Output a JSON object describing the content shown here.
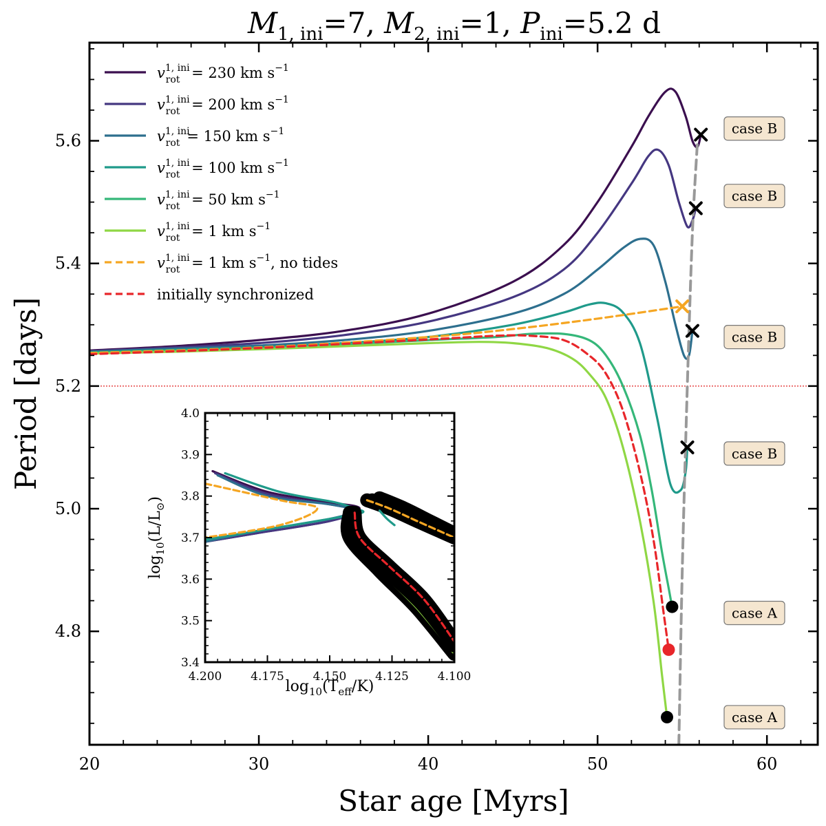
{
  "chart_data": {
    "type": "line",
    "title": "M1,ini=7, M2,ini=1, Pini=5.2 d",
    "xlabel": "Star age [Myrs]",
    "ylabel": "Period [days]",
    "xlim": [
      20,
      63
    ],
    "ylim": [
      4.615,
      5.76
    ],
    "xticks": [
      20,
      30,
      40,
      50,
      60
    ],
    "xtick_labels": [
      "20",
      "30",
      "40",
      "50",
      "60"
    ],
    "yticks": [
      4.8,
      5.0,
      5.2,
      5.4,
      5.6
    ],
    "ytick_labels": [
      "4.8",
      "5.0",
      "5.2",
      "5.4",
      "5.6"
    ],
    "reference_line": {
      "y": 5.2,
      "color": "#e02020",
      "style": "dotted"
    },
    "legend_position": "upper-left",
    "series": [
      {
        "name": "v_rot^{1,ini} = 230 km s^-1",
        "label_main": "v",
        "label_sub": "rot",
        "label_sup": "1, ini",
        "label_rest": " = 230 km s",
        "label_exp": "−1",
        "color": "#3b0f4f",
        "style": "solid",
        "x": [
          20,
          25,
          30,
          35,
          40,
          45,
          48,
          50,
          52,
          53,
          54,
          54.6,
          55.2,
          55.6,
          55.9,
          56.1
        ],
        "y": [
          5.258,
          5.265,
          5.275,
          5.29,
          5.318,
          5.37,
          5.43,
          5.5,
          5.59,
          5.64,
          5.68,
          5.68,
          5.64,
          5.6,
          5.59,
          5.61
        ]
      },
      {
        "name": "v_rot^{1,ini} = 200 km s^-1",
        "label_main": "v",
        "label_sub": "rot",
        "label_sup": "1, ini",
        "label_rest": " = 200 km s",
        "label_exp": "−1",
        "color": "#453781",
        "style": "solid",
        "x": [
          20,
          25,
          30,
          35,
          40,
          45,
          48,
          50,
          52,
          53,
          53.6,
          54.2,
          54.8,
          55.3,
          55.6,
          55.8
        ],
        "y": [
          5.257,
          5.263,
          5.27,
          5.283,
          5.305,
          5.345,
          5.39,
          5.45,
          5.53,
          5.575,
          5.585,
          5.56,
          5.5,
          5.46,
          5.47,
          5.49
        ]
      },
      {
        "name": "v_rot^{1,ini} = 150 km s^-1",
        "label_main": "v",
        "label_sub": "rot",
        "label_sup": "1, ini",
        "label_rest": "= 150 km s",
        "label_exp": "−1",
        "color": "#2d6f8e",
        "style": "solid",
        "x": [
          20,
          25,
          30,
          35,
          40,
          45,
          48,
          50,
          51.5,
          52.5,
          53.3,
          54,
          54.6,
          55.1,
          55.4,
          55.6
        ],
        "y": [
          5.256,
          5.261,
          5.266,
          5.275,
          5.29,
          5.318,
          5.35,
          5.39,
          5.425,
          5.44,
          5.43,
          5.37,
          5.3,
          5.25,
          5.25,
          5.29
        ]
      },
      {
        "name": "v_rot^{1,ini} = 100 km s^-1",
        "label_main": "v",
        "label_sub": "rot",
        "label_sup": "1, ini",
        "label_rest": " = 100 km s",
        "label_exp": "−1",
        "color": "#1f9a8a",
        "style": "solid",
        "x": [
          20,
          25,
          30,
          35,
          40,
          45,
          48,
          49.5,
          50.5,
          51.5,
          52.5,
          53.5,
          54.3,
          54.9,
          55.2,
          55.3
        ],
        "y": [
          5.255,
          5.259,
          5.263,
          5.27,
          5.28,
          5.3,
          5.32,
          5.333,
          5.335,
          5.32,
          5.27,
          5.15,
          5.04,
          5.03,
          5.06,
          5.1
        ]
      },
      {
        "name": "v_rot^{1,ini} = 50 km s^-1",
        "label_main": "v",
        "label_sub": "rot",
        "label_sup": "1, ini",
        "label_rest": " = 50 km s",
        "label_exp": "−1",
        "color": "#35b779",
        "style": "solid",
        "x": [
          20,
          25,
          30,
          35,
          40,
          44,
          46,
          48,
          49.5,
          50.5,
          51.5,
          52.5,
          53.2,
          53.8,
          54.2,
          54.4
        ],
        "y": [
          5.254,
          5.258,
          5.262,
          5.268,
          5.275,
          5.28,
          5.285,
          5.285,
          5.275,
          5.25,
          5.2,
          5.12,
          5.03,
          4.93,
          4.87,
          4.84
        ]
      },
      {
        "name": "v_rot^{1,ini} = 1 km s^-1",
        "label_main": "v",
        "label_sub": "rot",
        "label_sup": "1, ini",
        "label_rest": " = 1 km s",
        "label_exp": "−1",
        "color": "#8fd744",
        "style": "solid",
        "x": [
          20,
          25,
          30,
          35,
          40,
          43,
          45,
          47,
          48.5,
          49.5,
          50.5,
          51.5,
          52.5,
          53.3,
          53.8,
          54.1
        ],
        "y": [
          5.253,
          5.256,
          5.26,
          5.265,
          5.27,
          5.272,
          5.27,
          5.262,
          5.245,
          5.22,
          5.18,
          5.1,
          4.98,
          4.85,
          4.73,
          4.66
        ]
      },
      {
        "name": "v_rot^{1,ini} = 1 km s^-1, no tides",
        "label_main": "v",
        "label_sub": "rot",
        "label_sup": "1, ini",
        "label_rest": " = 1 km s",
        "label_exp": "−1",
        "label_tail": ", no tides",
        "color": "#f5a623",
        "style": "dashed",
        "x": [
          20,
          30,
          40,
          45,
          50,
          55
        ],
        "y": [
          5.254,
          5.263,
          5.28,
          5.293,
          5.31,
          5.33
        ]
      },
      {
        "name": "initially synchronized",
        "label_main": "initially synchronized",
        "color": "#e8262a",
        "style": "dashed",
        "x": [
          20,
          30,
          40,
          44,
          46,
          48,
          49.5,
          50.5,
          51.5,
          52.5,
          53.3,
          53.9,
          54.2
        ],
        "y": [
          5.252,
          5.262,
          5.276,
          5.282,
          5.282,
          5.275,
          5.25,
          5.22,
          5.16,
          5.06,
          4.95,
          4.83,
          4.77
        ]
      },
      {
        "name": "boundary",
        "color": "#999999",
        "style": "dashed",
        "x": [
          54.8,
          55.0,
          55.3,
          55.6,
          55.9
        ],
        "y": [
          4.615,
          4.9,
          5.2,
          5.45,
          5.6
        ]
      }
    ],
    "markers": [
      {
        "type": "x",
        "x": 56.1,
        "y": 5.61,
        "color": "#000000"
      },
      {
        "type": "x",
        "x": 55.8,
        "y": 5.49,
        "color": "#000000"
      },
      {
        "type": "x",
        "x": 55.0,
        "y": 5.33,
        "color": "#f5a623"
      },
      {
        "type": "x",
        "x": 55.6,
        "y": 5.29,
        "color": "#000000"
      },
      {
        "type": "x",
        "x": 55.3,
        "y": 5.1,
        "color": "#000000"
      },
      {
        "type": "circle",
        "x": 54.4,
        "y": 4.84,
        "color": "#000000"
      },
      {
        "type": "circle",
        "x": 54.2,
        "y": 4.77,
        "color": "#e8262a"
      },
      {
        "type": "circle",
        "x": 54.1,
        "y": 4.66,
        "color": "#000000"
      }
    ],
    "case_labels": [
      {
        "text": "case B",
        "y": 5.62
      },
      {
        "text": "case B",
        "y": 5.51
      },
      {
        "text": "case B",
        "y": 5.28
      },
      {
        "text": "case B",
        "y": 5.09
      },
      {
        "text": "case A",
        "y": 4.83
      },
      {
        "text": "case A",
        "y": 4.66
      }
    ],
    "inset": {
      "xlabel": "log10(Teff/K)",
      "ylabel": "log10(L/L⊙)",
      "xlim": [
        4.2,
        4.1
      ],
      "ylim": [
        3.4,
        4.0
      ],
      "xticks": [
        4.2,
        4.175,
        4.15,
        4.125,
        4.1
      ],
      "xtick_labels": [
        "4.200",
        "4.175",
        "4.150",
        "4.125",
        "4.100"
      ],
      "yticks": [
        3.4,
        3.5,
        3.6,
        3.7,
        3.8,
        3.9,
        4.0
      ],
      "ytick_labels": [
        "3.4",
        "3.5",
        "3.6",
        "3.7",
        "3.8",
        "3.9",
        "4.0"
      ],
      "tracks": [
        {
          "name": "230",
          "color": "#3b0f4f",
          "style": "solid",
          "x": [
            4.197,
            4.175,
            4.15,
            4.138,
            4.15,
            4.18,
            4.2
          ],
          "y": [
            3.86,
            3.81,
            3.785,
            3.77,
            3.74,
            3.71,
            3.69
          ]
        },
        {
          "name": "200",
          "color": "#453781",
          "style": "solid",
          "x": [
            4.196,
            4.175,
            4.15,
            4.139,
            4.15,
            4.18,
            4.2
          ],
          "y": [
            3.855,
            3.805,
            3.78,
            3.765,
            3.74,
            3.71,
            3.69
          ]
        },
        {
          "name": "150",
          "color": "#2d6f8e",
          "style": "solid",
          "x": [
            4.195,
            4.175,
            4.15,
            4.14,
            4.15,
            4.18,
            4.2
          ],
          "y": [
            3.85,
            3.8,
            3.78,
            3.765,
            3.745,
            3.715,
            3.69
          ]
        },
        {
          "name": "100",
          "color": "#1f9a8a",
          "style": "solid",
          "x": [
            4.192,
            4.17,
            4.148,
            4.14,
            4.137,
            4.15,
            4.18,
            4.2
          ],
          "y": [
            3.855,
            3.81,
            3.785,
            3.77,
            3.76,
            3.745,
            3.715,
            3.695
          ]
        },
        {
          "name": "notides",
          "color": "#f5a623",
          "style": "dashed",
          "x": [
            4.2,
            4.17,
            4.155,
            4.17,
            4.2
          ],
          "y": [
            3.83,
            3.79,
            3.77,
            3.73,
            3.7
          ]
        },
        {
          "name": "post-230",
          "color": "#3b0f4f",
          "style": "solid",
          "x": [
            4.13,
            4.12,
            4.11,
            4.1
          ],
          "y": [
            3.795,
            3.77,
            3.74,
            3.71
          ]
        },
        {
          "name": "post-200",
          "color": "#453781",
          "style": "solid",
          "x": [
            4.133,
            4.123,
            4.112,
            4.1
          ],
          "y": [
            3.79,
            3.765,
            3.735,
            3.705
          ]
        },
        {
          "name": "post-notides",
          "color": "#f5a623",
          "style": "dashed",
          "x": [
            4.135,
            4.126,
            4.115,
            4.1
          ],
          "y": [
            3.79,
            3.77,
            3.74,
            3.7
          ]
        },
        {
          "name": "100-hook",
          "color": "#1f9a8a",
          "style": "solid",
          "x": [
            4.13,
            4.127,
            4.124
          ],
          "y": [
            3.765,
            3.745,
            3.73
          ]
        },
        {
          "name": "1kms",
          "color": "#8fd744",
          "style": "solid",
          "x": [
            4.142,
            4.142,
            4.13,
            4.115,
            4.1
          ],
          "y": [
            3.76,
            3.7,
            3.62,
            3.53,
            3.42
          ]
        },
        {
          "name": "50kms",
          "color": "#35b779",
          "style": "solid",
          "x": [
            4.141,
            4.14,
            4.128,
            4.113,
            4.1
          ],
          "y": [
            3.76,
            3.7,
            3.625,
            3.54,
            3.44
          ]
        },
        {
          "name": "sync",
          "color": "#e8262a",
          "style": "dashed",
          "x": [
            4.14,
            4.138,
            4.126,
            4.112,
            4.1
          ],
          "y": [
            3.76,
            3.7,
            3.63,
            3.55,
            3.45
          ]
        }
      ]
    }
  }
}
